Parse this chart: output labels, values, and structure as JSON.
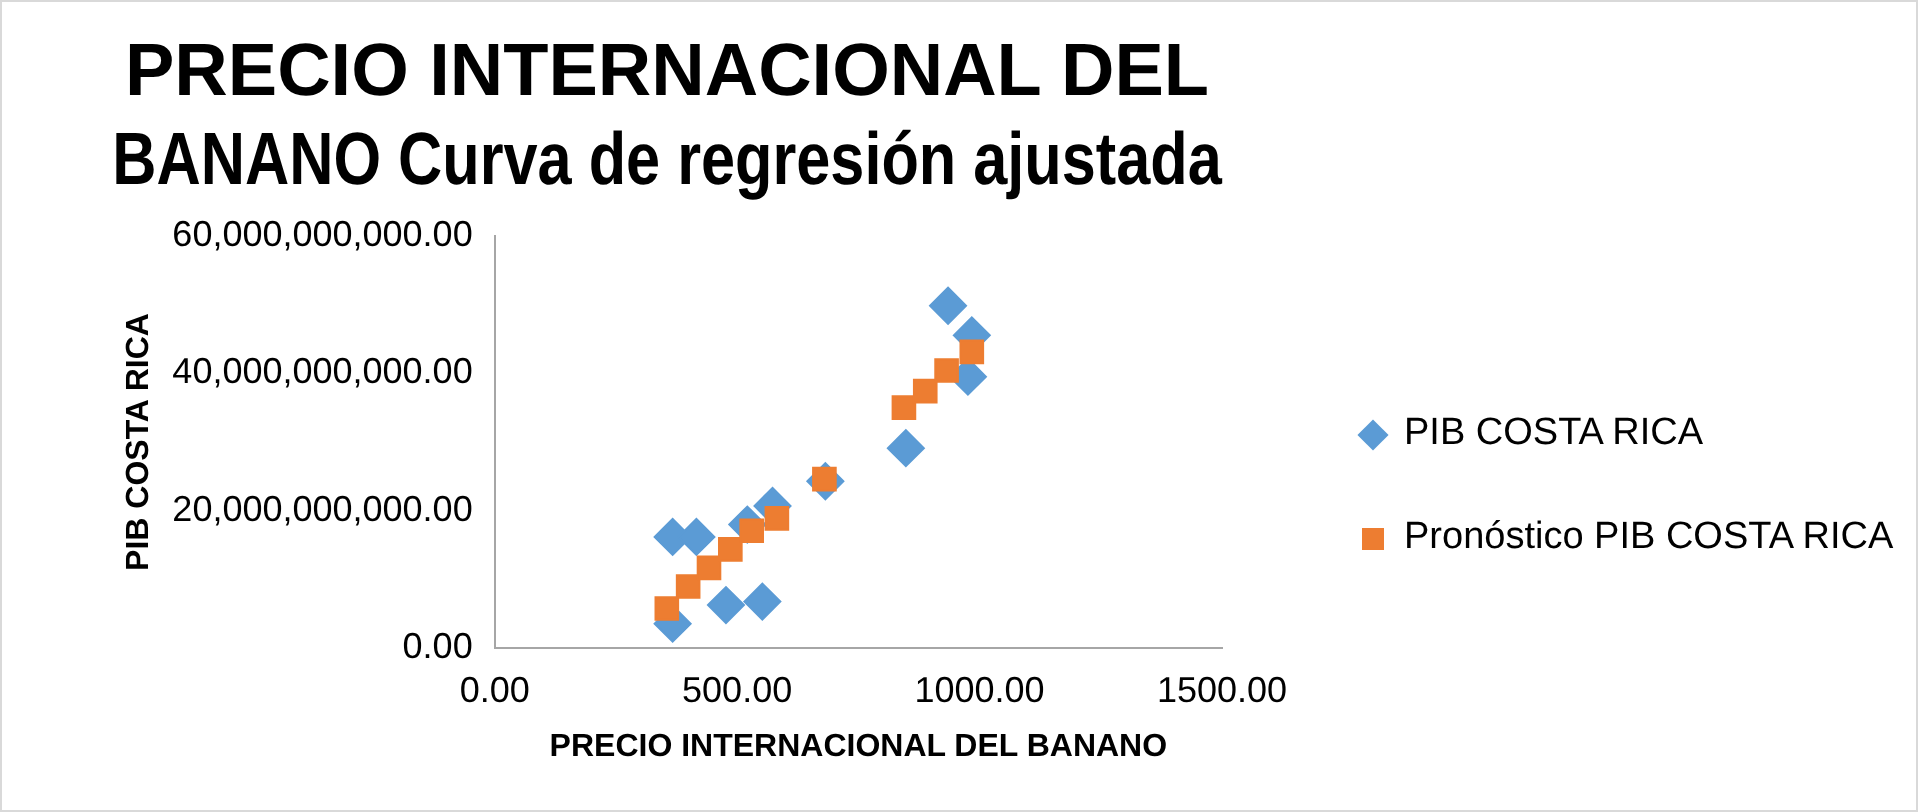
{
  "chart_data": {
    "type": "scatter",
    "title": "PRECIO INTERNACIONAL DEL BANANO Curva de regresión ajustada",
    "xlabel": "PRECIO INTERNACIONAL DEL BANANO",
    "ylabel": "PIB COSTA RICA",
    "xlim": [
      0,
      1500
    ],
    "xticks": [
      {
        "value": 0,
        "label": "0.00"
      },
      {
        "value": 500,
        "label": "500.00"
      },
      {
        "value": 1000,
        "label": "1000.00"
      },
      {
        "value": 1500,
        "label": "1500.00"
      }
    ],
    "ylim": [
      0,
      60000000000
    ],
    "yticks": [
      {
        "value": 0,
        "label": "0.00"
      },
      {
        "value": 20000000000,
        "label": "20,000,000,000.00"
      },
      {
        "value": 40000000000,
        "label": "40,000,000,000.00"
      },
      {
        "value": 60000000000,
        "label": "60,000,000,000.00"
      }
    ],
    "legend": "right",
    "grid": false,
    "series": [
      {
        "name": "PIB COSTA RICA",
        "color": "#5b9bd5",
        "marker": "diamond",
        "x": [
          367,
          416,
          367,
          477,
          552,
          521,
          573,
          682,
          848,
          935,
          984,
          976
        ],
        "values": [
          16200000000,
          16200000000,
          3600000000,
          6300000000,
          6800000000,
          18000000000,
          20700000000,
          24300000000,
          29100000000,
          49800000000,
          45500000000,
          39500000000
        ]
      },
      {
        "name": "Pronóstico PIB COSTA RICA",
        "color": "#ed7d31",
        "marker": "square",
        "x": [
          355,
          399,
          442,
          486,
          530,
          582,
          680,
          844,
          888,
          932,
          984
        ],
        "values": [
          5800000000,
          9000000000,
          11700000000,
          14400000000,
          17100000000,
          18900000000,
          24600000000,
          35000000000,
          37400000000,
          40400000000,
          43100000000
        ]
      }
    ]
  }
}
